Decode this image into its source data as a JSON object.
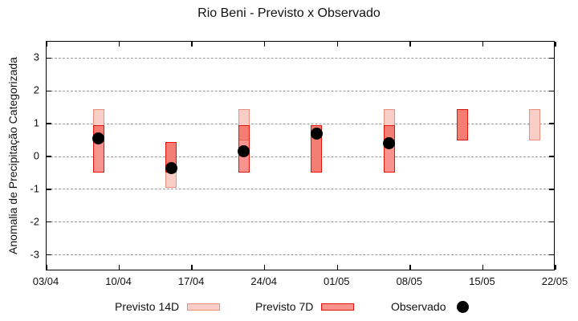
{
  "title": "Rio Beni - Previsto x Observado",
  "y_axis_label": "Anomalia de Precipitação Categorizada",
  "legend": {
    "previsto_14d_label": "Previsto 14D",
    "previsto_7d_label": "Previsto 7D",
    "observado_label": "Observado"
  },
  "colors": {
    "fill_14d": "#f9cec6",
    "border_14d": "#ef8e7d",
    "fill_7d_rgba": "rgba(242,60,48,0.55)",
    "fill_7d_on_white": "#f8938b",
    "border_7d": "#e3120b",
    "observado": "#000000",
    "grid": "#999999",
    "axis": "#000000"
  },
  "chart_data": {
    "type": "bar",
    "subtype": "range-bars-with-observations",
    "title": "Rio Beni - Previsto x Observado",
    "xlabel": "",
    "ylabel": "Anomalia de Precipitação Categorizada",
    "ylim": [
      -3.5,
      3.5
    ],
    "y_ticks": [
      3,
      2,
      1,
      0,
      -1,
      -2,
      -3
    ],
    "grid": "horizontal-dashed",
    "legend_position": "bottom-center",
    "x_tick_labels": [
      "03/04",
      "10/04",
      "17/04",
      "24/04",
      "01/05",
      "08/05",
      "15/05",
      "22/05"
    ],
    "x_tick_days": [
      0,
      7,
      14,
      21,
      28,
      35,
      42,
      49
    ],
    "x_domain_days": [
      0,
      49
    ],
    "series_names": [
      "Previsto 14D",
      "Previsto 7D",
      "Observado"
    ],
    "groups": [
      {
        "date": "08/04",
        "day": 5,
        "previsto_14d": [
          0.5,
          1.45
        ],
        "previsto_7d": [
          -0.5,
          0.95
        ],
        "observado": 0.55
      },
      {
        "date": "15/04",
        "day": 12,
        "previsto_14d": [
          -0.95,
          0.45
        ],
        "previsto_7d": [
          -0.5,
          0.45
        ],
        "observado": -0.35
      },
      {
        "date": "22/04",
        "day": 19,
        "previsto_14d": [
          0.5,
          1.45
        ],
        "previsto_7d": [
          -0.5,
          0.95
        ],
        "observado": 0.15
      },
      {
        "date": "29/04",
        "day": 26,
        "previsto_14d": [
          -0.5,
          0.95
        ],
        "previsto_7d": [
          -0.5,
          0.95
        ],
        "observado": 0.7
      },
      {
        "date": "06/05",
        "day": 33,
        "previsto_14d": [
          0.5,
          1.45
        ],
        "previsto_7d": [
          -0.5,
          0.95
        ],
        "observado": 0.4
      },
      {
        "date": "13/05",
        "day": 40,
        "previsto_14d": [
          0.5,
          1.45
        ],
        "previsto_7d": [
          0.5,
          1.45
        ],
        "observado": null
      },
      {
        "date": "20/05",
        "day": 47,
        "previsto_14d": [
          0.5,
          1.45
        ],
        "previsto_7d": null,
        "observado": null
      }
    ]
  }
}
